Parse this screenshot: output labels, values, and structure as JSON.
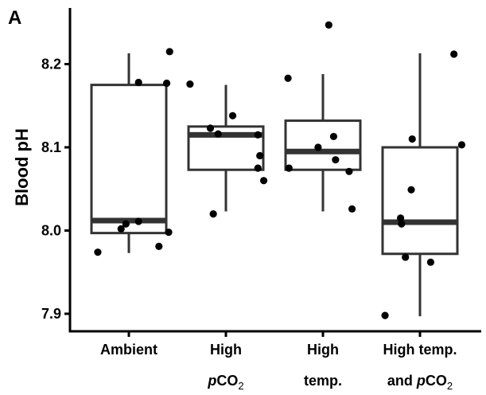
{
  "chart_data": {
    "type": "box",
    "panel_label": "A",
    "title": "",
    "xlabel": "",
    "ylabel": "Blood pH",
    "ylim": [
      7.88,
      8.265
    ],
    "yticks": [
      {
        "value": 7.9,
        "label": "7.9"
      },
      {
        "value": 8.0,
        "label": "8.0"
      },
      {
        "value": 8.1,
        "label": "8.1"
      },
      {
        "value": 8.2,
        "label": "8.2"
      }
    ],
    "grid": false,
    "legend": "none",
    "colors": {
      "box": "#333333",
      "point": "#000000",
      "axis": "#000000"
    },
    "categories": [
      {
        "line1": "Ambient",
        "line2_plain": "",
        "line2_italic": "",
        "line2_rest": "",
        "line2_sub": ""
      },
      {
        "line1": "High",
        "line2_plain": "",
        "line2_italic": "p",
        "line2_rest": "CO",
        "line2_sub": "2"
      },
      {
        "line1": "High",
        "line2_plain": "temp.",
        "line2_italic": "",
        "line2_rest": "",
        "line2_sub": ""
      },
      {
        "line1": "High temp.",
        "line2_plain": "and ",
        "line2_italic": "p",
        "line2_rest": "CO",
        "line2_sub": "2"
      }
    ],
    "boxes": [
      {
        "min": 7.973,
        "q1": 7.997,
        "median": 8.012,
        "q3": 8.175,
        "max": 8.213
      },
      {
        "min": 8.023,
        "q1": 8.073,
        "median": 8.115,
        "q3": 8.125,
        "max": 8.175
      },
      {
        "min": 8.023,
        "q1": 8.073,
        "median": 8.095,
        "q3": 8.132,
        "max": 8.188
      },
      {
        "min": 7.897,
        "q1": 7.972,
        "median": 8.01,
        "q3": 8.1,
        "max": 8.213
      }
    ],
    "points": [
      [
        {
          "x": 0.68,
          "y": 7.974
        },
        {
          "x": 0.92,
          "y": 8.002
        },
        {
          "x": 0.97,
          "y": 8.008
        },
        {
          "x": 1.1,
          "y": 8.011
        },
        {
          "x": 1.1,
          "y": 8.178
        },
        {
          "x": 1.31,
          "y": 7.981
        },
        {
          "x": 1.39,
          "y": 8.177
        },
        {
          "x": 1.41,
          "y": 7.998
        },
        {
          "x": 1.42,
          "y": 8.215
        }
      ],
      [
        {
          "x": 1.63,
          "y": 8.176
        },
        {
          "x": 1.84,
          "y": 8.123
        },
        {
          "x": 1.87,
          "y": 8.02
        },
        {
          "x": 1.92,
          "y": 8.116
        },
        {
          "x": 2.07,
          "y": 8.138
        },
        {
          "x": 2.33,
          "y": 8.115
        },
        {
          "x": 2.33,
          "y": 8.075
        },
        {
          "x": 2.35,
          "y": 8.09
        },
        {
          "x": 2.39,
          "y": 8.06
        }
      ],
      [
        {
          "x": 2.64,
          "y": 8.183
        },
        {
          "x": 2.65,
          "y": 8.075
        },
        {
          "x": 2.95,
          "y": 8.1
        },
        {
          "x": 3.06,
          "y": 8.247
        },
        {
          "x": 3.11,
          "y": 8.113
        },
        {
          "x": 3.13,
          "y": 8.085
        },
        {
          "x": 3.27,
          "y": 8.071
        },
        {
          "x": 3.3,
          "y": 8.026
        }
      ],
      [
        {
          "x": 3.64,
          "y": 7.898
        },
        {
          "x": 3.8,
          "y": 8.015
        },
        {
          "x": 3.81,
          "y": 8.008
        },
        {
          "x": 3.85,
          "y": 7.968
        },
        {
          "x": 3.91,
          "y": 8.049
        },
        {
          "x": 3.92,
          "y": 8.11
        },
        {
          "x": 4.11,
          "y": 7.962
        },
        {
          "x": 4.35,
          "y": 8.212
        },
        {
          "x": 4.43,
          "y": 8.103
        }
      ]
    ]
  }
}
